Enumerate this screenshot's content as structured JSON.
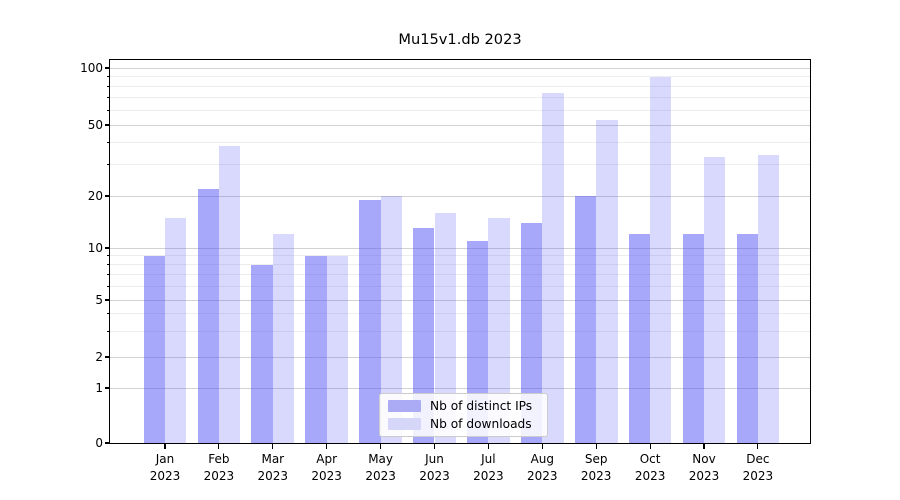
{
  "title": "Mu15v1.db 2023",
  "chart_data": {
    "type": "bar",
    "title": "Mu15v1.db 2023",
    "categories": [
      "Jan",
      "Feb",
      "Mar",
      "Apr",
      "May",
      "Jun",
      "Jul",
      "Aug",
      "Sep",
      "Oct",
      "Nov",
      "Dec"
    ],
    "category_year": "2023",
    "series": [
      {
        "name": "Nb of distinct IPs",
        "values": [
          9,
          22,
          8,
          9,
          19,
          13,
          11,
          14,
          20,
          12,
          12,
          12
        ],
        "fill_color": "rgba(82,82,245,0.5)",
        "legend_color": "#aaaaf5"
      },
      {
        "name": "Nb of downloads",
        "values": [
          15,
          38,
          12,
          9,
          20,
          16,
          15,
          74,
          53,
          90,
          33,
          34
        ],
        "fill_color": "rgba(82,82,245,0.22)",
        "legend_color": "#d6d6f8"
      }
    ],
    "yscale": "log-like (symlog, linear below 1)",
    "yticks": [
      0,
      1,
      2,
      5,
      10,
      20,
      50,
      100
    ],
    "minor_yticks": [
      3,
      4,
      6,
      7,
      8,
      9,
      30,
      40,
      60,
      70,
      80,
      90
    ],
    "ylim": [
      0,
      110
    ],
    "xlabel": "",
    "ylabel": "",
    "grid": "horizontal major+minor",
    "legend_position": "lower center"
  },
  "colors": {
    "background": "#ffffff",
    "axis": "#000000",
    "grid_major": "#d2d2d2",
    "grid_minor": "#ededed",
    "text": "#000000"
  }
}
